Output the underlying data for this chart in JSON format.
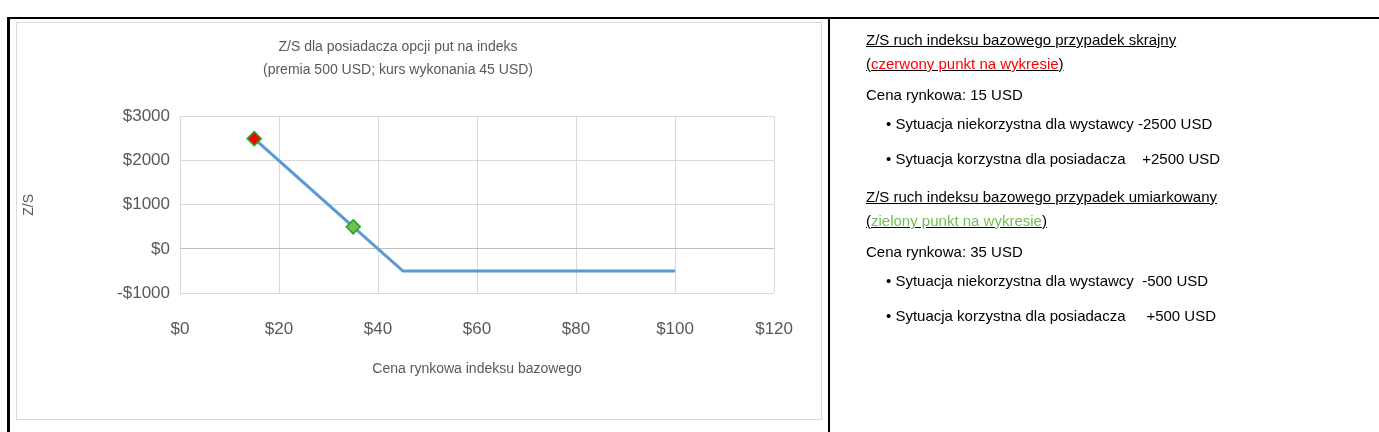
{
  "chart_data": [
    {
      "type": "line",
      "title": "Z/S dla posiadacza opcji put na indeks",
      "subtitle": "(premia 500 USD; kurs wykonania 45 USD)",
      "xlabel": "Cena rynkowa indeksu bazowego",
      "ylabel": "Z/S",
      "xlim": [
        0,
        120
      ],
      "xticks": [
        {
          "value": 0,
          "label": "$0"
        },
        {
          "value": 20,
          "label": "$20"
        },
        {
          "value": 40,
          "label": "$40"
        },
        {
          "value": 60,
          "label": "$60"
        },
        {
          "value": 80,
          "label": "$80"
        },
        {
          "value": 100,
          "label": "$100"
        },
        {
          "value": 120,
          "label": "$120"
        }
      ],
      "ylim": [
        -1000,
        3000
      ],
      "yticks": [
        {
          "value": -1000,
          "label": "-$1000"
        },
        {
          "value": 0,
          "label": "$0"
        },
        {
          "value": 1000,
          "label": "$1000"
        },
        {
          "value": 2000,
          "label": "$2000"
        },
        {
          "value": 3000,
          "label": "$3000"
        }
      ],
      "grid": true,
      "legend": false,
      "series": [
        {
          "type": "line",
          "color": "#5b9bd5",
          "x": [
            15,
            45,
            100
          ],
          "values": [
            2500,
            -500,
            -500
          ],
          "marker": "none"
        },
        {
          "type": "scatter",
          "color": "#ff0000",
          "x": [
            15
          ],
          "values": [
            2500
          ],
          "marker": "diamond"
        },
        {
          "type": "scatter",
          "color": "#70c050",
          "x": [
            35
          ],
          "values": [
            500
          ],
          "marker": "diamond"
        }
      ]
    },
    {
      "type": "other",
      "annotations": [
        "Z/S ruch indeksu bazowego przypadek skrajny",
        "(czerwony punkt na wykresie)",
        "Cena rynkowa: 15 USD",
        "• Sytuacja niekorzystna dla wystawcy -2500 USD",
        "• Sytuacja korzystna dla posiadacza    +2500 USD",
        "Z/S ruch indeksu bazowego przypadek umiarkowany",
        "(zielony punkt na wykresie)",
        "Cena rynkowa: 35 USD",
        "• Sytuacja niekorzystna dla wystawcy  -500 USD",
        "• Sytuacja korzystna dla posiadacza     +500 USD"
      ]
    }
  ]
}
